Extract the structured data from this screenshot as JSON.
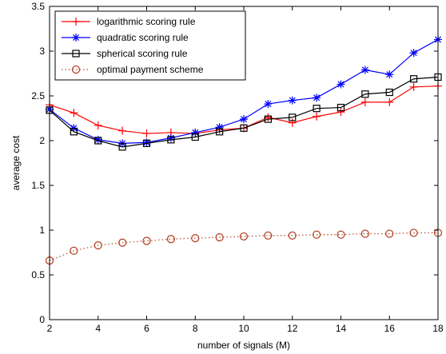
{
  "chart_data": {
    "type": "line",
    "xlabel": "number of signals (M)",
    "ylabel": "average cost",
    "xlim": [
      2,
      18
    ],
    "ylim": [
      0,
      3.5
    ],
    "xticks": [
      2,
      4,
      6,
      8,
      10,
      12,
      14,
      16,
      18
    ],
    "yticks": [
      0,
      0.5,
      1,
      1.5,
      2,
      2.5,
      3,
      3.5
    ],
    "grid": false,
    "legend_position": "top-left",
    "x": [
      2,
      3,
      4,
      5,
      6,
      7,
      8,
      9,
      10,
      11,
      12,
      13,
      14,
      15,
      16,
      17,
      18
    ],
    "series": [
      {
        "name": "logarithmic scoring rule",
        "color": "#ff0000",
        "marker": "plus",
        "line": "solid",
        "values": [
          2.4,
          2.31,
          2.17,
          2.11,
          2.08,
          2.09,
          2.08,
          2.12,
          2.14,
          2.26,
          2.2,
          2.27,
          2.32,
          2.43,
          2.43,
          2.6,
          2.61
        ]
      },
      {
        "name": "quadratic scoring rule",
        "color": "#0000ff",
        "marker": "star",
        "line": "solid",
        "values": [
          2.35,
          2.14,
          2.01,
          1.97,
          1.98,
          2.03,
          2.09,
          2.15,
          2.24,
          2.41,
          2.45,
          2.48,
          2.63,
          2.79,
          2.74,
          2.98,
          3.13
        ]
      },
      {
        "name": "spherical scoring rule",
        "color": "#000000",
        "marker": "square",
        "line": "solid",
        "values": [
          2.34,
          2.1,
          2.0,
          1.93,
          1.97,
          2.01,
          2.04,
          2.1,
          2.14,
          2.24,
          2.26,
          2.36,
          2.37,
          2.52,
          2.54,
          2.69,
          2.71
        ]
      },
      {
        "name": "optimal payment scheme",
        "color": "#b5482b",
        "marker": "circle",
        "line": "dotted",
        "values": [
          0.66,
          0.77,
          0.83,
          0.86,
          0.88,
          0.9,
          0.91,
          0.92,
          0.93,
          0.94,
          0.94,
          0.95,
          0.95,
          0.96,
          0.96,
          0.97,
          0.97
        ]
      }
    ]
  }
}
